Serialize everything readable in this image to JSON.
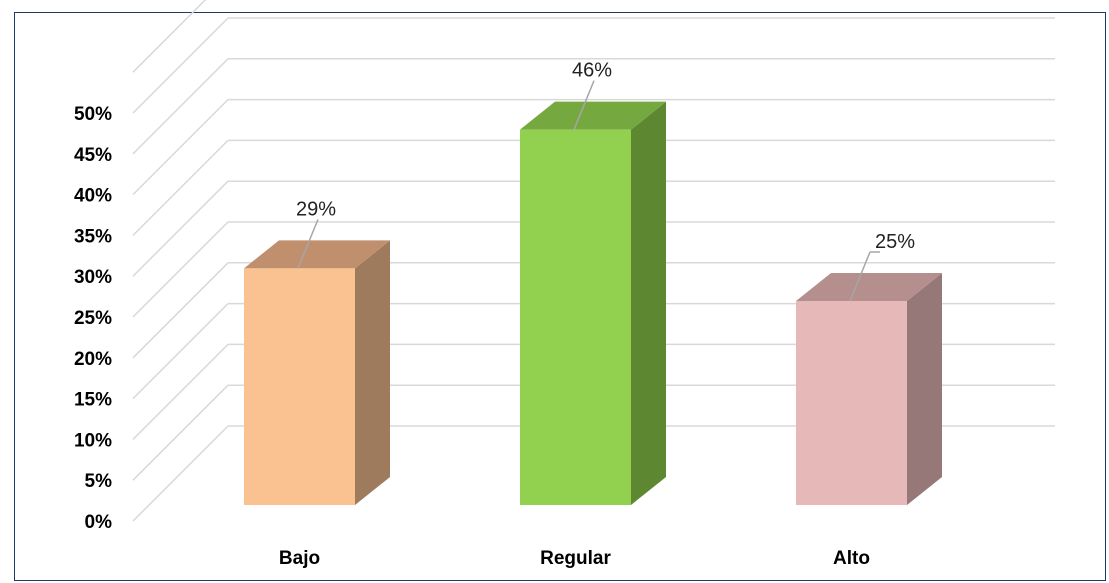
{
  "chart_data": {
    "type": "bar",
    "style": "3d-column",
    "categories": [
      "Bajo",
      "Regular",
      "Alto"
    ],
    "values": [
      29,
      46,
      25
    ],
    "data_labels": [
      "29%",
      "46%",
      "25%"
    ],
    "ylim": [
      0,
      55
    ],
    "y_ticks": [
      {
        "value": 0,
        "label": "0%"
      },
      {
        "value": 5,
        "label": "5%"
      },
      {
        "value": 10,
        "label": "10%"
      },
      {
        "value": 15,
        "label": "15%"
      },
      {
        "value": 20,
        "label": "20%"
      },
      {
        "value": 25,
        "label": "25%"
      },
      {
        "value": 30,
        "label": "30%"
      },
      {
        "value": 35,
        "label": "35%"
      },
      {
        "value": 40,
        "label": "40%"
      },
      {
        "value": 45,
        "label": "45%"
      },
      {
        "value": 50,
        "label": "50%"
      }
    ],
    "grid": true,
    "legend": "none",
    "colors": {
      "front": [
        "#f9c290",
        "#92d050",
        "#e6b8b7"
      ],
      "side": [
        "#9e7b5c",
        "#5e8731",
        "#957877"
      ],
      "top": [
        "#c0906e",
        "#76a840",
        "#b48f8e"
      ],
      "grid": "#d9d9d9",
      "frame": "#1f3864"
    }
  }
}
